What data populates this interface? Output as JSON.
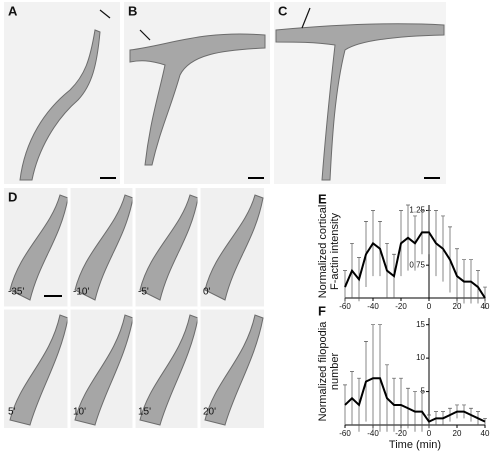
{
  "panels": [
    "A",
    "B",
    "C",
    "D",
    "E",
    "F"
  ],
  "time_labels": [
    "-35'",
    "-10'",
    "-5'",
    "0'",
    "5'",
    "10'",
    "15'",
    "20'"
  ],
  "chart_data": [
    {
      "type": "line",
      "ylabel": [
        "Normalized cortical",
        "F-actin intensity"
      ],
      "x": [
        -60,
        -55,
        -50,
        -45,
        -40,
        -35,
        -30,
        -25,
        -20,
        -15,
        -10,
        -5,
        0,
        5,
        10,
        15,
        20,
        25,
        30,
        35,
        40
      ],
      "series": [
        {
          "color": "#000000",
          "values": [
            0.55,
            0.7,
            0.62,
            0.85,
            0.95,
            0.9,
            0.7,
            0.65,
            0.95,
            1.0,
            0.95,
            1.05,
            1.05,
            0.95,
            0.9,
            0.8,
            0.65,
            0.6,
            0.6,
            0.55,
            0.45
          ],
          "errors": [
            0.15,
            0.25,
            0.2,
            0.3,
            0.3,
            0.25,
            0.25,
            0.2,
            0.3,
            0.3,
            0.25,
            0.2,
            0.2,
            0.3,
            0.3,
            0.3,
            0.25,
            0.2,
            0.2,
            0.15,
            0.1
          ]
        }
      ],
      "xlim": [
        -60,
        40
      ],
      "xticks": [
        -60,
        -40,
        -20,
        0,
        20,
        40
      ],
      "ylim": [
        0.45,
        1.3
      ],
      "yticks": [
        0.75,
        1.25
      ]
    },
    {
      "type": "line",
      "ylabel": [
        "Normalized filopodia",
        "number"
      ],
      "xlabel": "Time (min)",
      "x": [
        -60,
        -55,
        -50,
        -45,
        -40,
        -35,
        -30,
        -25,
        -20,
        -15,
        -10,
        -5,
        0,
        5,
        10,
        15,
        20,
        25,
        30,
        35,
        40
      ],
      "series": [
        {
          "color": "#000000",
          "values": [
            3,
            4,
            3,
            6.5,
            7,
            7,
            4,
            3,
            3,
            2.5,
            2,
            2,
            0.5,
            1,
            1,
            1.5,
            2,
            2,
            1.5,
            1,
            0.5
          ],
          "errors": [
            3,
            4,
            4,
            6,
            8,
            8,
            5,
            4,
            4,
            3,
            3,
            3,
            1,
            1,
            1,
            1,
            1,
            1,
            1,
            1,
            0.5
          ]
        }
      ],
      "xlim": [
        -60,
        40
      ],
      "xticks": [
        -60,
        -40,
        -20,
        0,
        20,
        40
      ],
      "ylim": [
        0,
        16
      ],
      "yticks": [
        5,
        10,
        15
      ]
    }
  ]
}
